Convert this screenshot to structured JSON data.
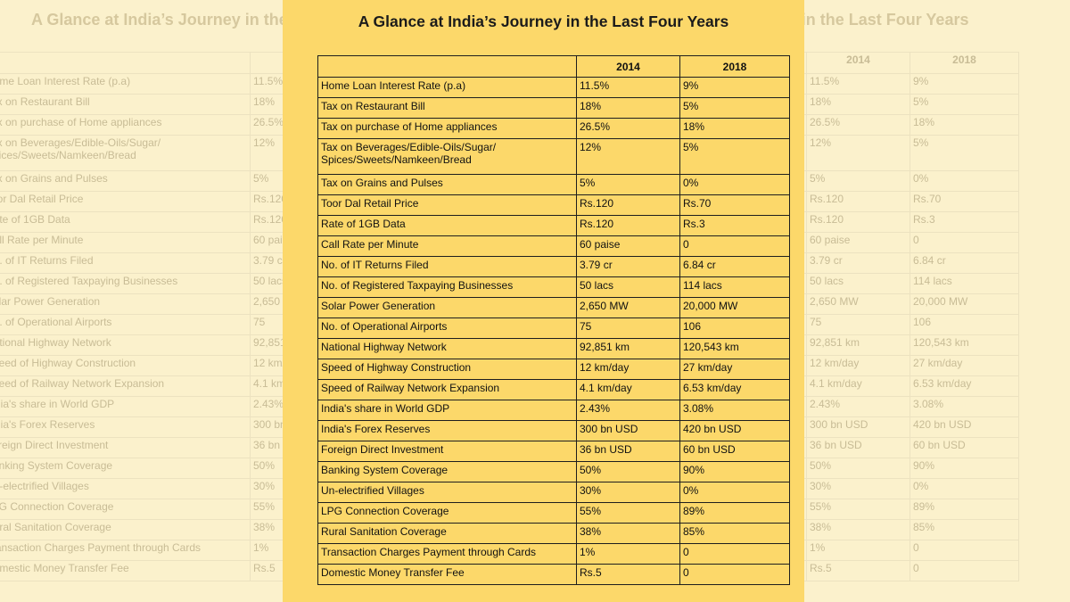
{
  "title": "A Glance at India’s Journey in the Last Four Years",
  "columns": [
    "",
    "2014",
    "2018"
  ],
  "rows": [
    {
      "label": "Home Loan Interest Rate (p.a)",
      "y2014": "11.5%",
      "y2018": "9%"
    },
    {
      "label": "Tax on Restaurant Bill",
      "y2014": "18%",
      "y2018": "5%"
    },
    {
      "label": "Tax on purchase of Home appliances",
      "y2014": "26.5%",
      "y2018": "18%"
    },
    {
      "label": "Tax on Beverages/Edible-Oils/Sugar/\nSpices/Sweets/Namkeen/Bread",
      "y2014": "12%",
      "y2018": "5%"
    },
    {
      "label": "Tax on Grains and Pulses",
      "y2014": "5%",
      "y2018": "0%"
    },
    {
      "label": "Toor Dal Retail Price",
      "y2014": "Rs.120",
      "y2018": "Rs.70"
    },
    {
      "label": "Rate of 1GB Data",
      "y2014": "Rs.120",
      "y2018": "Rs.3"
    },
    {
      "label": "Call Rate per Minute",
      "y2014": "60 paise",
      "y2018": "0"
    },
    {
      "label": "No. of IT Returns Filed",
      "y2014": "3.79 cr",
      "y2018": "6.84 cr"
    },
    {
      "label": "No. of Registered Taxpaying Businesses",
      "y2014": "50 lacs",
      "y2018": "114 lacs"
    },
    {
      "label": "Solar Power Generation",
      "y2014": "2,650 MW",
      "y2018": "20,000 MW"
    },
    {
      "label": "No. of Operational Airports",
      "y2014": "75",
      "y2018": "106"
    },
    {
      "label": "National Highway Network",
      "y2014": "92,851 km",
      "y2018": "120,543 km"
    },
    {
      "label": "Speed of Highway Construction",
      "y2014": "12 km/day",
      "y2018": "27 km/day"
    },
    {
      "label": "Speed of Railway Network Expansion",
      "y2014": "4.1 km/day",
      "y2018": "6.53 km/day"
    },
    {
      "label": "India's share in World GDP",
      "y2014": "2.43%",
      "y2018": "3.08%"
    },
    {
      "label": "India's Forex Reserves",
      "y2014": "300 bn USD",
      "y2018": "420 bn USD"
    },
    {
      "label": "Foreign Direct Investment",
      "y2014": "36 bn USD",
      "y2018": "60 bn USD"
    },
    {
      "label": "Banking System Coverage",
      "y2014": "50%",
      "y2018": "90%"
    },
    {
      "label": "Un-electrified Villages",
      "y2014": "30%",
      "y2018": "0%"
    },
    {
      "label": "LPG Connection Coverage",
      "y2014": "55%",
      "y2018": "89%"
    },
    {
      "label": "Rural Sanitation Coverage",
      "y2014": "38%",
      "y2018": "85%"
    },
    {
      "label": "Transaction Charges Payment through Cards",
      "y2014": "1%",
      "y2018": "0"
    },
    {
      "label": "Domestic Money Transfer Fee",
      "y2014": "Rs.5",
      "y2018": "0"
    }
  ]
}
